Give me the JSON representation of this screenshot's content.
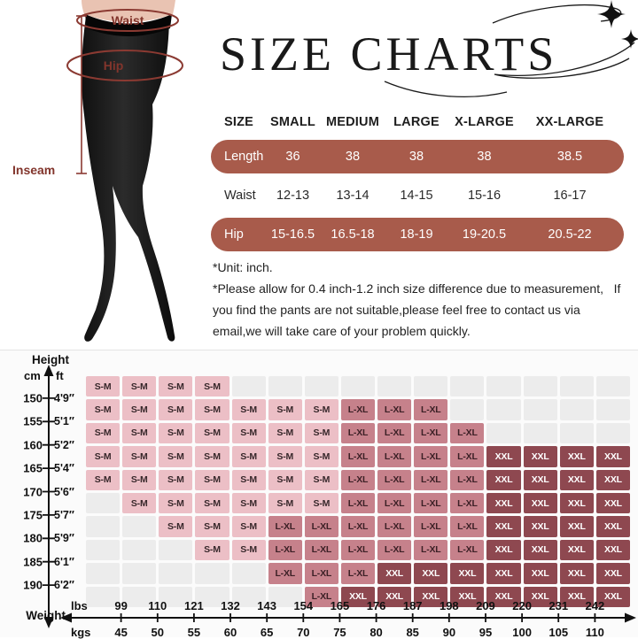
{
  "title": "SIZE CHARTS",
  "figure": {
    "waist_label": "Waist",
    "hip_label": "Hip",
    "inseam_label": "Inseam",
    "annotation_color": "#8b3a32",
    "tights_color": "#151515",
    "skin_color": "#e9c3b2"
  },
  "size_table": {
    "columns": [
      "SIZE",
      "SMALL",
      "MEDIUM",
      "LARGE",
      "X-LARGE",
      "XX-LARGE"
    ],
    "rows": [
      {
        "label": "Length",
        "values": [
          "36",
          "38",
          "38",
          "38",
          "38.5"
        ],
        "highlight": true
      },
      {
        "label": "Waist",
        "values": [
          "12-13",
          "13-14",
          "14-15",
          "15-16",
          "16-17"
        ],
        "highlight": false
      },
      {
        "label": "Hip",
        "values": [
          "15-16.5",
          "16.5-18",
          "18-19",
          "19-20.5",
          "20.5-22"
        ],
        "highlight": true
      }
    ],
    "highlight_color": "#a85b4b"
  },
  "notes": [
    "*Unit: inch.",
    "*Please allow for 0.4 inch-1.2 inch size difference due to measurement,   If you find the pants are not suitable,please feel free to contact us via email,we will take care of your problem quickly."
  ],
  "chart_data": {
    "type": "heatmap",
    "title": "",
    "x_axis": {
      "label": "Weight",
      "unit_top": "lbs",
      "unit_bottom": "kgs",
      "lbs": [
        99,
        110,
        121,
        132,
        143,
        154,
        165,
        176,
        187,
        198,
        209,
        220,
        231,
        242
      ],
      "kgs": [
        45,
        50,
        55,
        60,
        65,
        70,
        75,
        80,
        85,
        90,
        95,
        100,
        105,
        110
      ]
    },
    "y_axis": {
      "label": "Height",
      "unit_left": "cm",
      "unit_right": "ft",
      "cm": [
        150,
        155,
        160,
        165,
        170,
        175,
        180,
        185,
        190
      ],
      "ft": [
        "4'9″",
        "5'1″",
        "5'2″",
        "5'4″",
        "5'6″",
        "5'7″",
        "5'9″",
        "6'1″",
        "6'2″"
      ]
    },
    "legend": {
      "SM": "S-M",
      "LXL": "L-XL",
      "XXL": "XXL"
    },
    "colors": {
      "SM": "#ecbfc6",
      "LXL": "#c6818b",
      "XXL": "#8e4850",
      "empty": "#ececec"
    },
    "cells": [
      [
        "SM",
        "SM",
        "SM",
        "SM",
        "",
        "",
        "",
        "",
        "",
        "",
        "",
        "",
        "",
        "",
        ""
      ],
      [
        "SM",
        "SM",
        "SM",
        "SM",
        "SM",
        "SM",
        "SM",
        "LXL",
        "LXL",
        "LXL",
        "",
        "",
        "",
        "",
        ""
      ],
      [
        "SM",
        "SM",
        "SM",
        "SM",
        "SM",
        "SM",
        "SM",
        "LXL",
        "LXL",
        "LXL",
        "LXL",
        "",
        "",
        "",
        ""
      ],
      [
        "SM",
        "SM",
        "SM",
        "SM",
        "SM",
        "SM",
        "SM",
        "LXL",
        "LXL",
        "LXL",
        "LXL",
        "XXL",
        "XXL",
        "XXL",
        "XXL"
      ],
      [
        "SM",
        "SM",
        "SM",
        "SM",
        "SM",
        "SM",
        "SM",
        "LXL",
        "LXL",
        "LXL",
        "LXL",
        "XXL",
        "XXL",
        "XXL",
        "XXL"
      ],
      [
        "",
        "SM",
        "SM",
        "SM",
        "SM",
        "SM",
        "SM",
        "LXL",
        "LXL",
        "LXL",
        "LXL",
        "XXL",
        "XXL",
        "XXL",
        "XXL"
      ],
      [
        "",
        "",
        "SM",
        "SM",
        "SM",
        "LXL",
        "LXL",
        "LXL",
        "LXL",
        "LXL",
        "LXL",
        "XXL",
        "XXL",
        "XXL",
        "XXL"
      ],
      [
        "",
        "",
        "",
        "SM",
        "SM",
        "LXL",
        "LXL",
        "LXL",
        "LXL",
        "LXL",
        "LXL",
        "XXL",
        "XXL",
        "XXL",
        "XXL"
      ],
      [
        "",
        "",
        "",
        "",
        "",
        "LXL",
        "LXL",
        "LXL",
        "XXL",
        "XXL",
        "XXL",
        "XXL",
        "XXL",
        "XXL",
        "XXL"
      ],
      [
        "",
        "",
        "",
        "",
        "",
        "",
        "LXL",
        "XXL",
        "XXL",
        "XXL",
        "XXL",
        "XXL",
        "XXL",
        "XXL",
        "XXL"
      ]
    ]
  }
}
